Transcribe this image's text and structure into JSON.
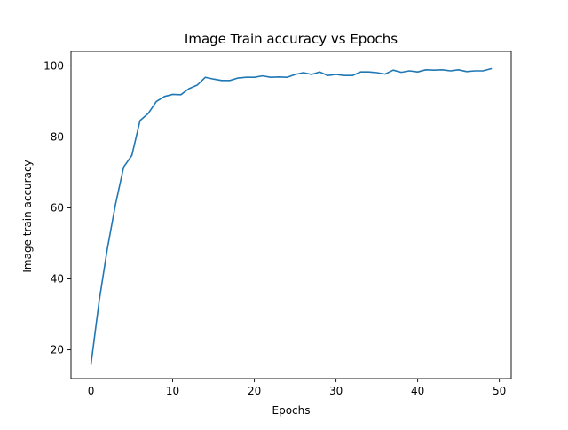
{
  "chart_data": {
    "type": "line",
    "title": "Image Train accuracy vs Epochs",
    "xlabel": "Epochs",
    "ylabel": "Image train accuracy",
    "xlim": [
      -2.45,
      51.45
    ],
    "ylim": [
      11.9,
      104.1
    ],
    "xticks": [
      0,
      10,
      20,
      30,
      40,
      50
    ],
    "yticks": [
      20,
      40,
      60,
      80,
      100
    ],
    "grid": false,
    "line_color": "#1f77b4",
    "series": [
      {
        "x": [
          0,
          1,
          2,
          3,
          4,
          5,
          6,
          7,
          8,
          9,
          10,
          11,
          12,
          13,
          14,
          15,
          16,
          17,
          18,
          19,
          20,
          21,
          22,
          23,
          24,
          25,
          26,
          27,
          28,
          29,
          30,
          31,
          32,
          33,
          34,
          35,
          36,
          37,
          38,
          39,
          40,
          41,
          42,
          43,
          44,
          45,
          46,
          47,
          48,
          49
        ],
        "values": [
          16.0,
          33.8,
          48.5,
          61.0,
          71.5,
          74.8,
          84.6,
          86.6,
          90.0,
          91.4,
          92.0,
          91.9,
          93.6,
          94.6,
          96.8,
          96.3,
          95.9,
          95.9,
          96.6,
          96.8,
          96.8,
          97.2,
          96.8,
          96.9,
          96.8,
          97.6,
          98.1,
          97.6,
          98.3,
          97.3,
          97.6,
          97.3,
          97.3,
          98.3,
          98.3,
          98.1,
          97.7,
          98.8,
          98.2,
          98.6,
          98.3,
          98.9,
          98.8,
          98.9,
          98.6,
          98.9,
          98.4,
          98.6,
          98.6,
          99.2
        ]
      }
    ]
  }
}
